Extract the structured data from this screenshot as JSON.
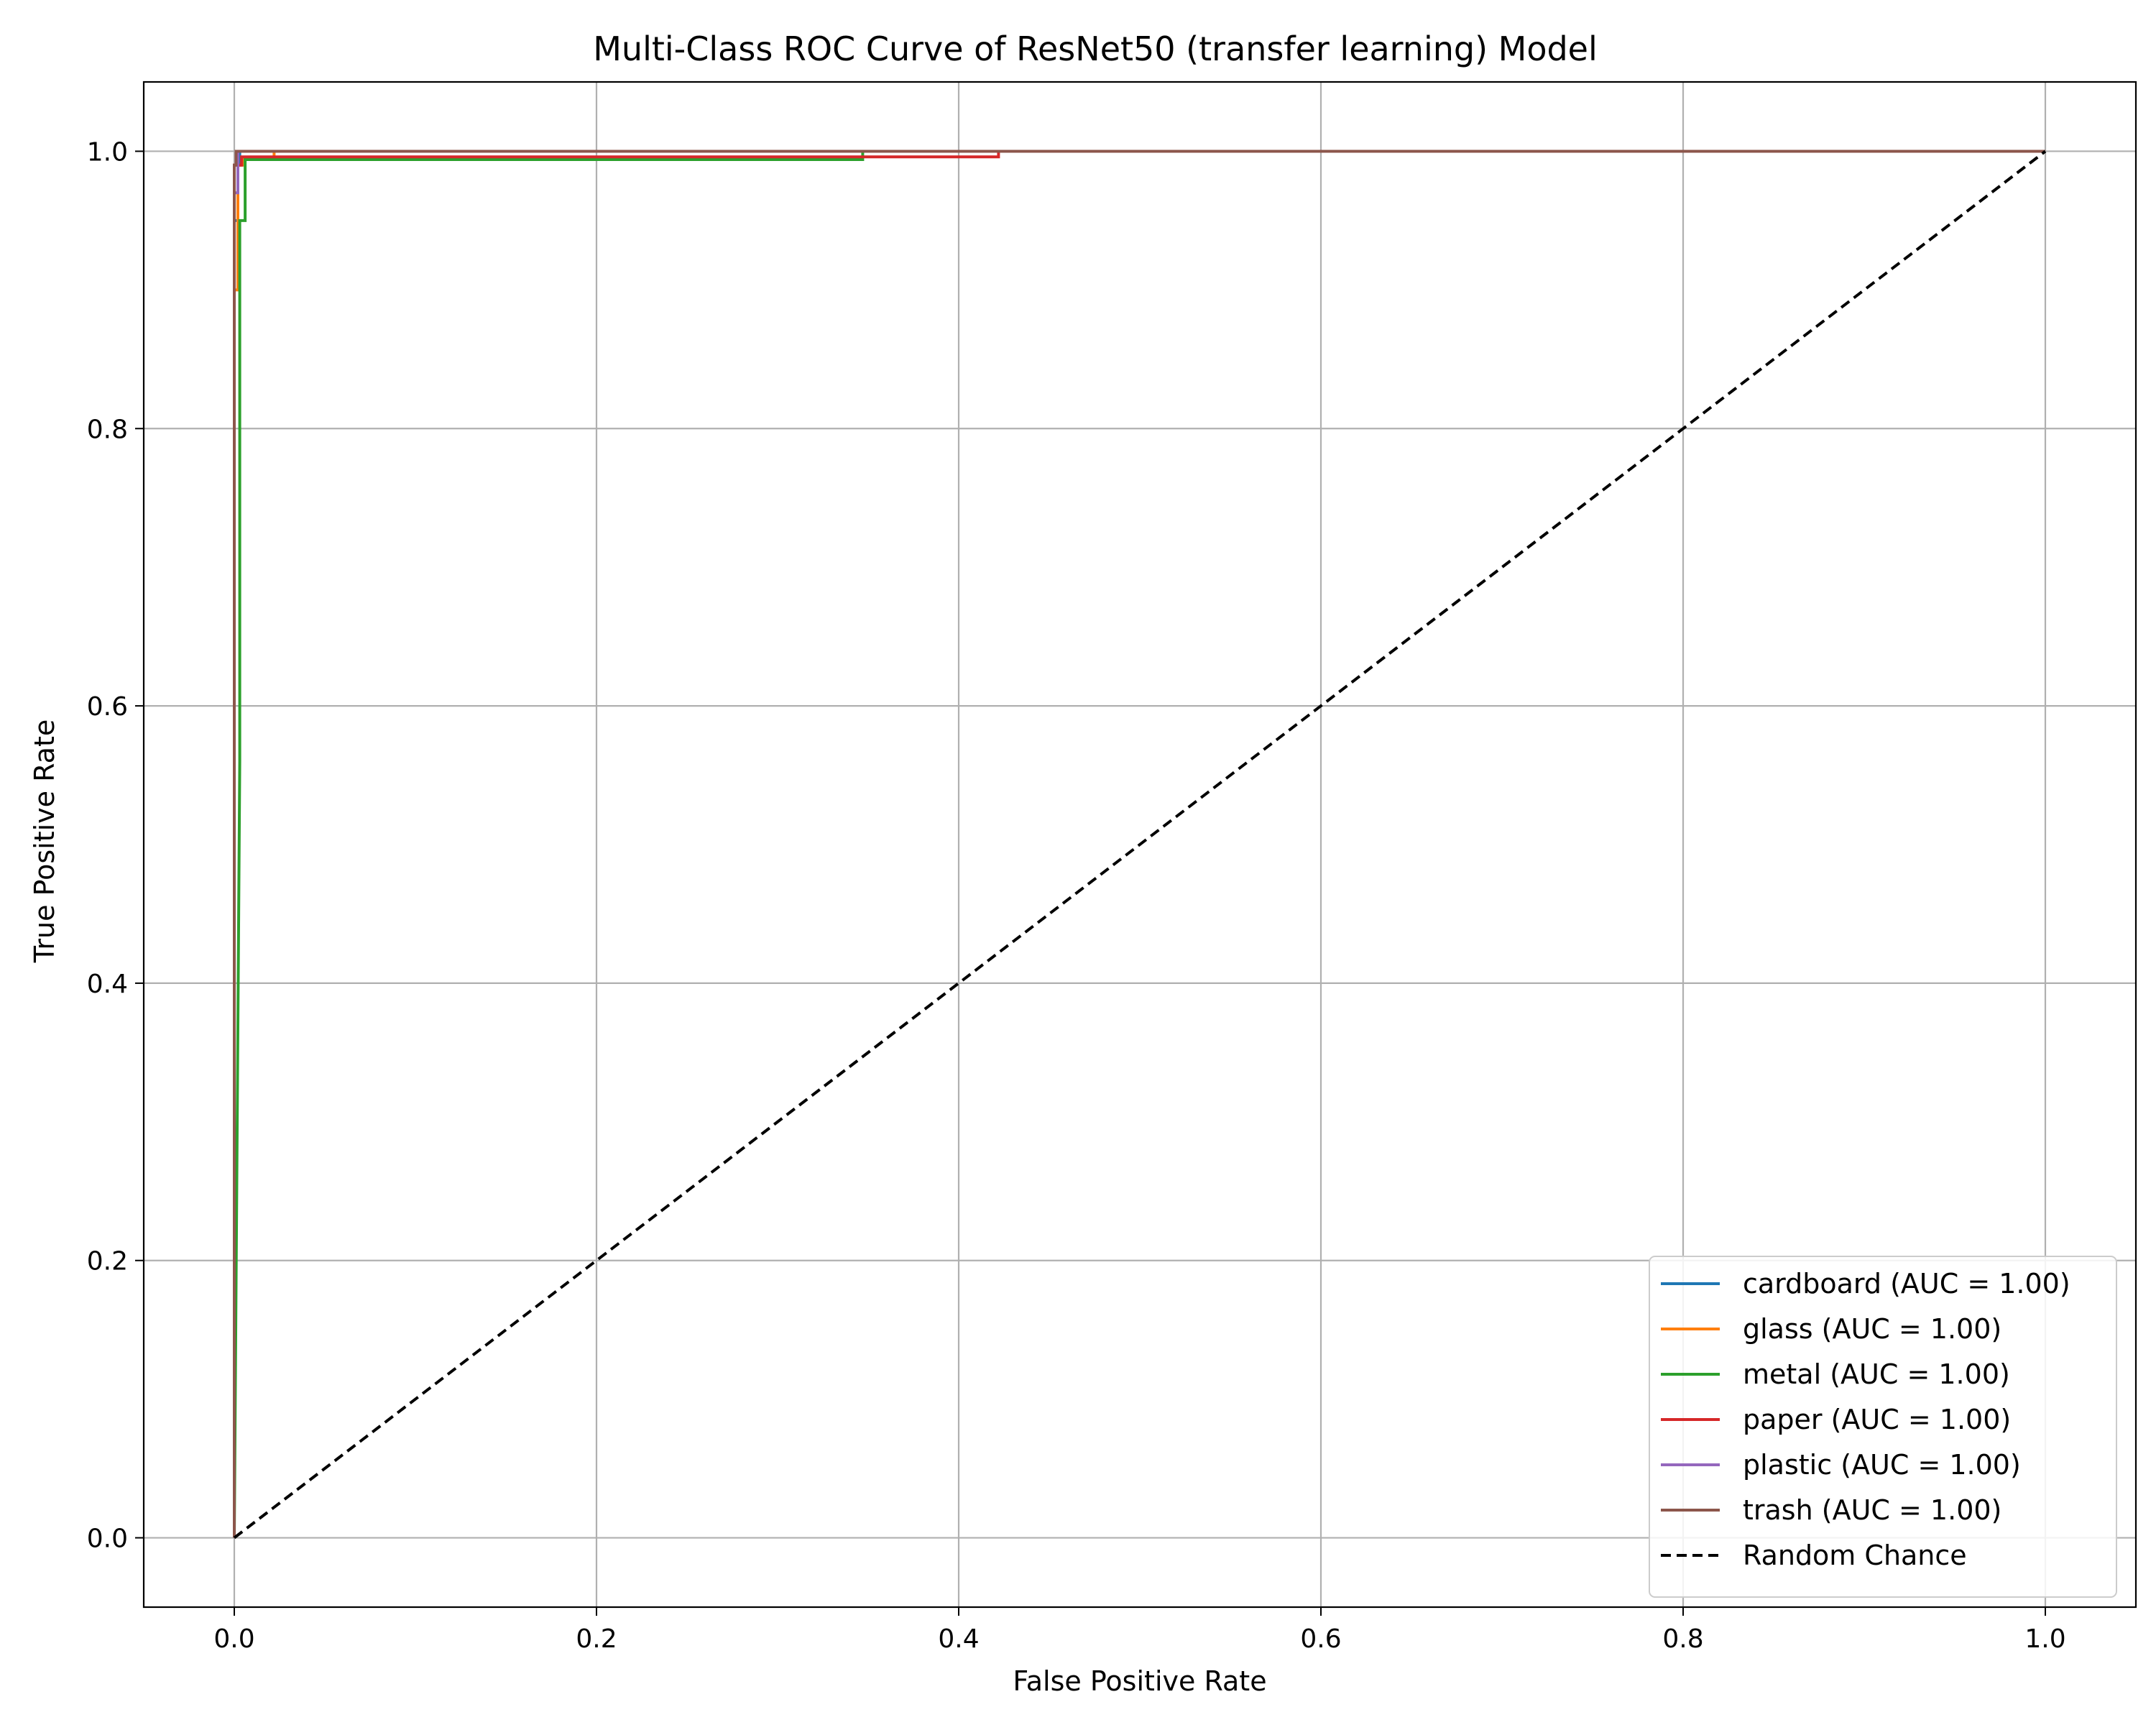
{
  "chart_data": {
    "type": "line",
    "title": "Multi-Class ROC Curve of ResNet50 (transfer learning) Model",
    "xlabel": "False Positive Rate",
    "ylabel": "True Positive Rate",
    "xlim": [
      -0.05,
      1.05
    ],
    "ylim": [
      -0.05,
      1.05
    ],
    "xticks": [
      0.0,
      0.2,
      0.4,
      0.6,
      0.8,
      1.0
    ],
    "yticks": [
      0.0,
      0.2,
      0.4,
      0.6,
      0.8,
      1.0
    ],
    "xtick_labels": [
      "0.0",
      "0.2",
      "0.4",
      "0.6",
      "0.8",
      "1.0"
    ],
    "ytick_labels": [
      "0.0",
      "0.2",
      "0.4",
      "0.6",
      "0.8",
      "1.0"
    ],
    "grid": true,
    "legend_position": "bottom-right",
    "series": [
      {
        "name": "cardboard (AUC = 1.00)",
        "color": "#1f77b4",
        "style": "solid",
        "x": [
          0,
          0,
          0.002,
          0.002,
          0.003,
          0.003,
          1.0
        ],
        "y": [
          0,
          0.95,
          0.95,
          0.99,
          0.99,
          1.0,
          1.0
        ]
      },
      {
        "name": "glass (AUC = 1.00)",
        "color": "#ff7f0e",
        "style": "solid",
        "x": [
          0,
          0,
          0.002,
          0.002,
          0.005,
          0.005,
          0.022,
          0.022,
          1.0
        ],
        "y": [
          0,
          0.9,
          0.9,
          0.99,
          0.99,
          0.995,
          0.995,
          1.0,
          1.0
        ]
      },
      {
        "name": "metal (AUC = 1.00)",
        "color": "#2ca02c",
        "style": "solid",
        "x": [
          0,
          0.003,
          0.003,
          0.006,
          0.006,
          0.347,
          0.347,
          1.0
        ],
        "y": [
          0,
          0.56,
          0.95,
          0.95,
          0.994,
          0.994,
          1.0,
          1.0
        ]
      },
      {
        "name": "paper (AUC = 1.00)",
        "color": "#d62728",
        "style": "solid",
        "x": [
          0,
          0,
          0.004,
          0.004,
          0.422,
          0.422,
          1.0
        ],
        "y": [
          0,
          0.99,
          0.99,
          0.996,
          0.996,
          1.0,
          1.0
        ]
      },
      {
        "name": "plastic (AUC = 1.00)",
        "color": "#9467bd",
        "style": "solid",
        "x": [
          0,
          0,
          0.002,
          0.002,
          1.0
        ],
        "y": [
          0,
          0.97,
          0.97,
          1.0,
          1.0
        ]
      },
      {
        "name": "trash (AUC = 1.00)",
        "color": "#8c564b",
        "style": "solid",
        "x": [
          0,
          0,
          0.001,
          0.001,
          1.0
        ],
        "y": [
          0,
          0.99,
          0.99,
          1.0,
          1.0
        ]
      },
      {
        "name": "Random Chance",
        "color": "#000000",
        "style": "dashed",
        "x": [
          0,
          1
        ],
        "y": [
          0,
          1
        ]
      }
    ]
  }
}
